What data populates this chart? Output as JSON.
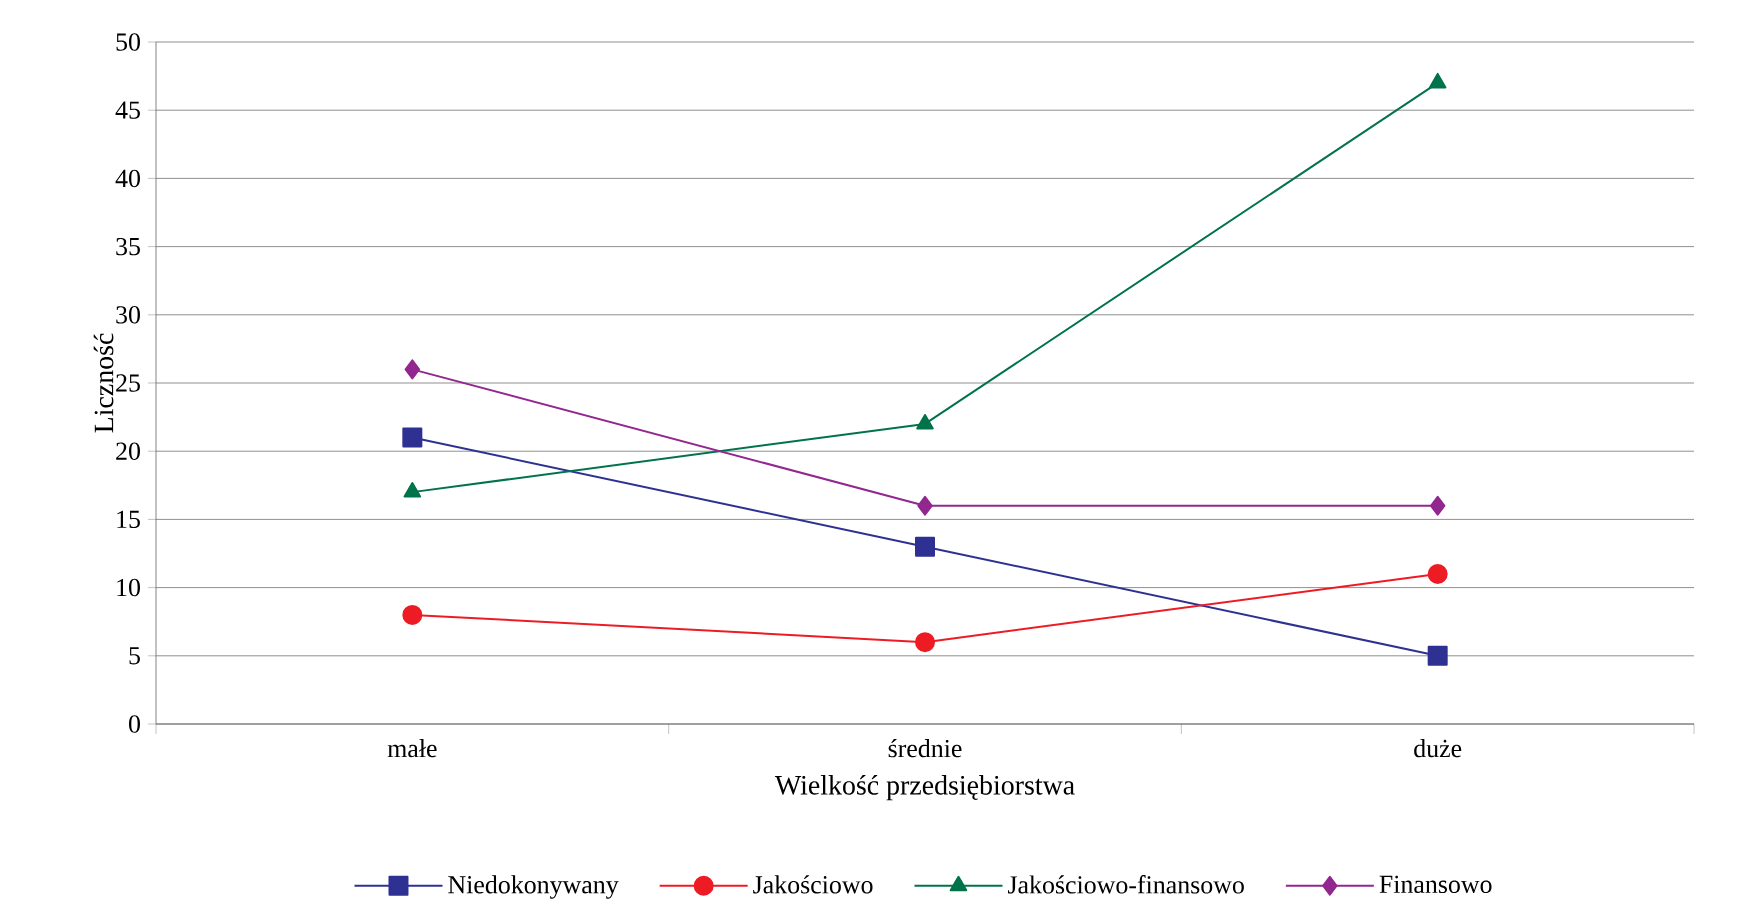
{
  "chart_data": {
    "type": "line",
    "xlabel": "Wielkość przedsiębiorstwa",
    "ylabel": "Liczność",
    "categories": [
      "małe",
      "średnie",
      "duże"
    ],
    "series": [
      {
        "name": "Niedokonywany",
        "color": "#2e3192",
        "marker": "square",
        "values": [
          21,
          13,
          5
        ]
      },
      {
        "name": "Jakościowo",
        "color": "#ed1c24",
        "marker": "circle",
        "values": [
          8,
          6,
          11
        ]
      },
      {
        "name": "Jakościowo-finansowo",
        "color": "#00734a",
        "marker": "triangle",
        "values": [
          17,
          22,
          47
        ]
      },
      {
        "name": "Finansowo",
        "color": "#92278f",
        "marker": "diamond",
        "values": [
          26,
          16,
          16
        ]
      }
    ],
    "ylim": [
      0,
      50
    ],
    "yticks": [
      0,
      5,
      10,
      15,
      20,
      25,
      30,
      35,
      40,
      45,
      50
    ],
    "grid": "y",
    "legend": "bottom",
    "line_style": "solid"
  }
}
